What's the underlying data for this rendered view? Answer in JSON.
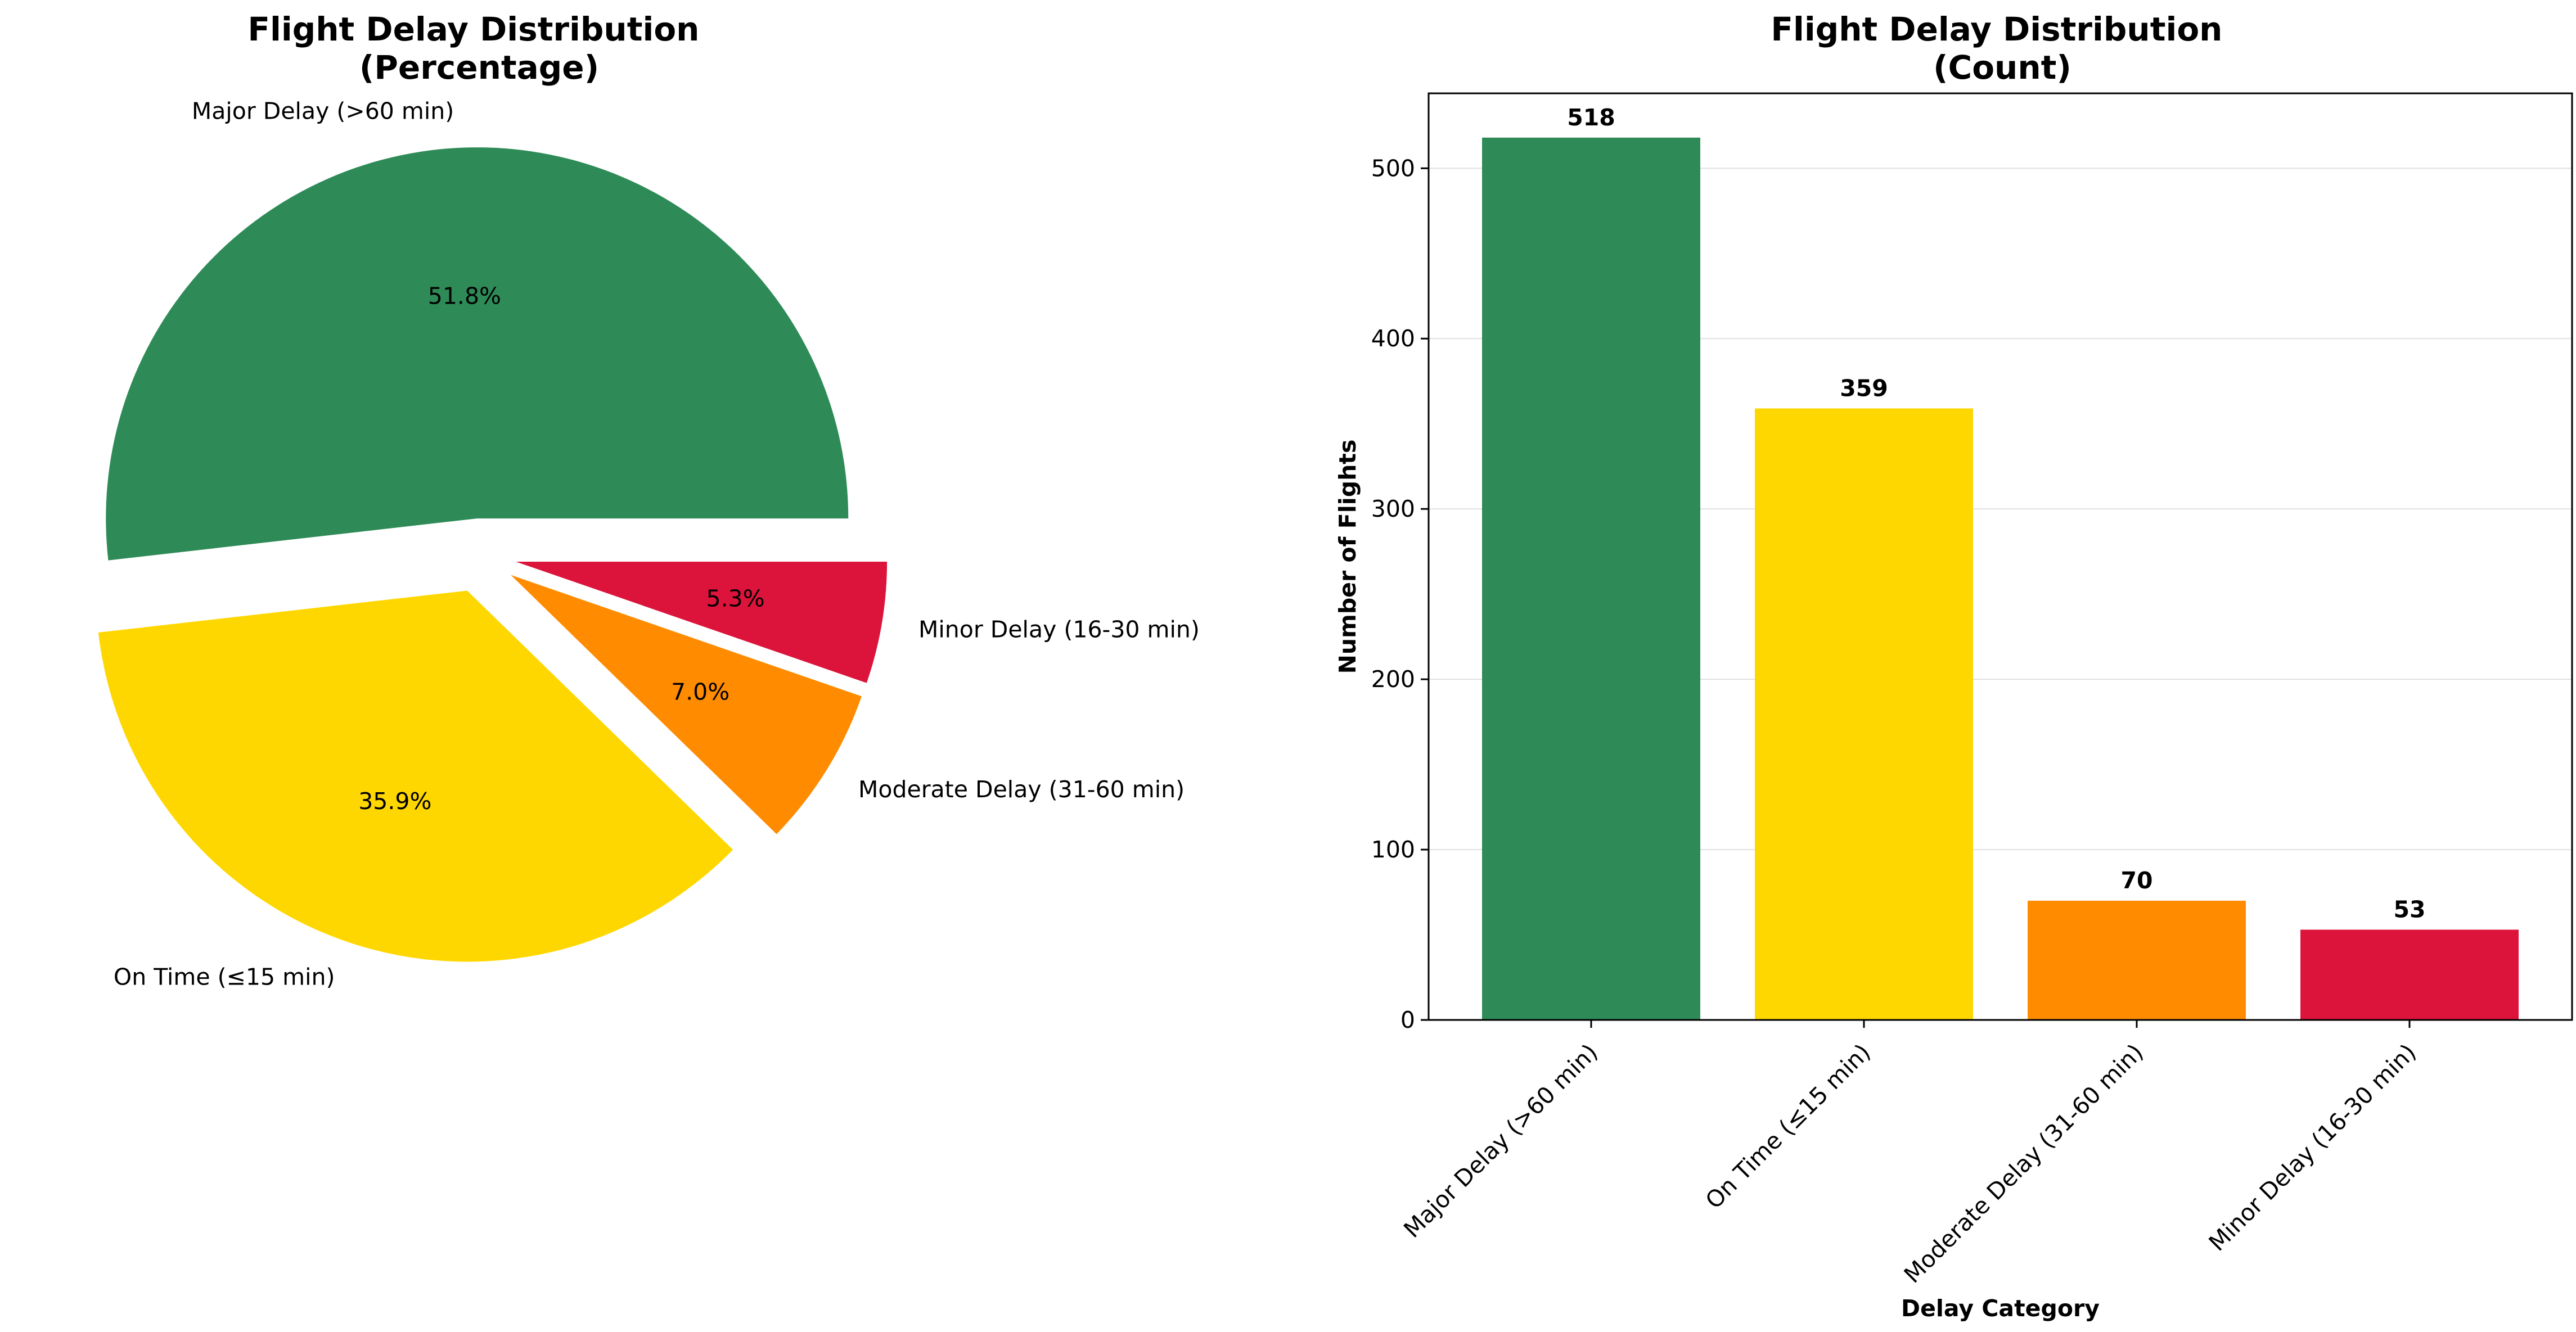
{
  "chart_data": [
    {
      "type": "pie",
      "title": "Flight Delay Distribution\n(Percentage)",
      "labels": [
        "Major Delay (>60 min)",
        "On Time (≤15 min)",
        "Moderate Delay (31-60 min)",
        "Minor Delay (16-30 min)"
      ],
      "values": [
        51.8,
        35.9,
        7.0,
        5.3
      ],
      "value_labels": [
        "51.8%",
        "35.9%",
        "7.0%",
        "5.3%"
      ],
      "colors": [
        "#2e8b57",
        "#ffd700",
        "#ff8c00",
        "#dc143c"
      ],
      "exploded": true
    },
    {
      "type": "bar",
      "title": "Flight Delay Distribution\n(Count)",
      "categories": [
        "Major Delay (>60 min)",
        "On Time (≤15 min)",
        "Moderate Delay (31-60 min)",
        "Minor Delay (16-30 min)"
      ],
      "values": [
        518,
        359,
        70,
        53
      ],
      "colors": [
        "#2e8b57",
        "#ffd700",
        "#ff8c00",
        "#dc143c"
      ],
      "xlabel": "Delay Category",
      "ylabel": "Number of Flights",
      "ylim": [
        0,
        544
      ],
      "yticks": [
        0,
        100,
        200,
        300,
        400,
        500
      ],
      "grid": "y"
    }
  ]
}
